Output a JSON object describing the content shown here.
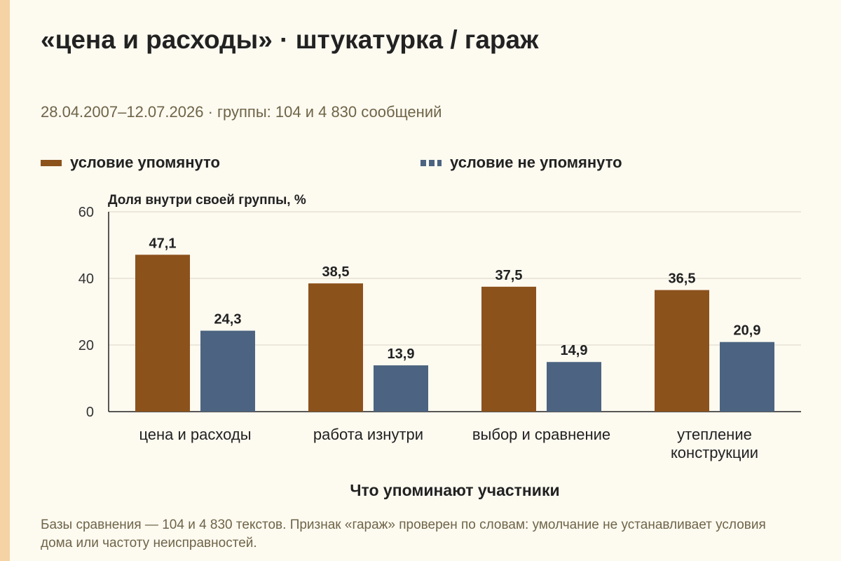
{
  "title": "«цена и расходы» · штукатурка / гараж",
  "subtitle": "28.04.2007–12.07.2026 · группы: 104 и 4 830 сообщений",
  "colors": {
    "mentioned": "#8c521c",
    "not_mentioned": "#4c6481",
    "stripe": "#f5d3a4",
    "background": "#fdfaf0"
  },
  "chart_data": {
    "type": "bar",
    "categories": [
      "цена и расходы",
      "работа изнутри",
      "выбор и сравнение",
      "утепление конструкции"
    ],
    "series": [
      {
        "name": "условие упомянуто",
        "values": [
          47.1,
          38.5,
          37.5,
          36.5
        ],
        "labels": [
          "47,1",
          "38,5",
          "37,5",
          "36,5"
        ]
      },
      {
        "name": "условие не упомянуто",
        "values": [
          24.3,
          13.9,
          14.9,
          20.9
        ],
        "labels": [
          "24,3",
          "13,9",
          "14,9",
          "20,9"
        ]
      }
    ],
    "ylabel": "Доля внутри своей группы, %",
    "xlabel": "Что упоминают участники",
    "ylim": [
      0,
      60
    ],
    "yticks": [
      0,
      20,
      40,
      60
    ],
    "grid": true,
    "legend": "top-left"
  },
  "footnote": "Базы сравнения — 104 и 4 830 текстов. Признак «гараж» проверен по словам: умолчание не устанавливает условия дома или частоту неисправностей."
}
